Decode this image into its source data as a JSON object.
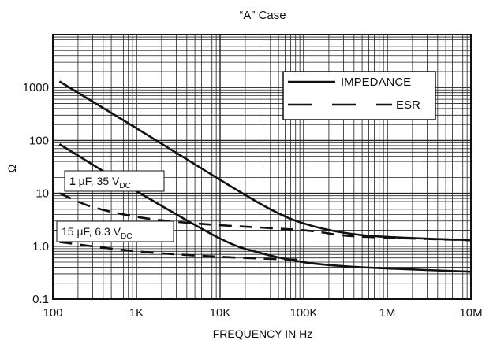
{
  "chart_data": {
    "type": "line",
    "title": "“A” Case",
    "xlabel": "FREQUENCY IN Hz",
    "ylabel": "Ω",
    "x_scale": "log",
    "y_scale": "log",
    "xlim": [
      100,
      10000000
    ],
    "ylim": [
      0.1,
      10000
    ],
    "grid": true,
    "x_ticks": [
      {
        "value": 100,
        "label": "100"
      },
      {
        "value": 1000,
        "label": "1K"
      },
      {
        "value": 10000,
        "label": "10K"
      },
      {
        "value": 100000,
        "label": "100K"
      },
      {
        "value": 1000000,
        "label": "1M"
      },
      {
        "value": 10000000,
        "label": "10M"
      }
    ],
    "y_ticks": [
      {
        "value": 0.1,
        "label": "0.1"
      },
      {
        "value": 1,
        "label": "1.0"
      },
      {
        "value": 10,
        "label": "10"
      },
      {
        "value": 100,
        "label": "100"
      },
      {
        "value": 1000,
        "label": "1000"
      }
    ],
    "legend": {
      "placement": "top-right",
      "entries": [
        {
          "label": "IMPEDANCE",
          "style": "solid"
        },
        {
          "label": "ESR",
          "style": "dashed"
        }
      ]
    },
    "annotations": [
      {
        "bold": "1",
        "text": " µF, 35 V",
        "sub": "DC"
      },
      {
        "bold": "",
        "text": "15 µF, 6.3 V",
        "sub": "DC"
      }
    ],
    "series": [
      {
        "style": "solid",
        "x": [
          120,
          1000,
          10000,
          40000,
          100000,
          300000,
          1000000,
          10000000
        ],
        "y": [
          1300,
          170,
          18,
          5,
          2.7,
          1.8,
          1.5,
          1.3
        ]
      },
      {
        "style": "dashed",
        "x": [
          120,
          300,
          1000,
          3000,
          10000,
          100000,
          300000,
          1000000,
          10000000
        ],
        "y": [
          10,
          5.5,
          3.6,
          2.9,
          2.5,
          2.0,
          1.6,
          1.45,
          1.3
        ]
      },
      {
        "style": "solid",
        "x": [
          120,
          1000,
          10000,
          30000,
          100000,
          300000,
          1000000,
          10000000
        ],
        "y": [
          85,
          11,
          1.4,
          0.75,
          0.5,
          0.42,
          0.38,
          0.33
        ]
      },
      {
        "style": "dashed",
        "x": [
          120,
          1000,
          10000,
          100000
        ],
        "y": [
          1.2,
          0.8,
          0.63,
          0.55
        ]
      }
    ]
  },
  "colors": {
    "line": "#111111",
    "grid": "#222222",
    "background": "#ffffff"
  }
}
